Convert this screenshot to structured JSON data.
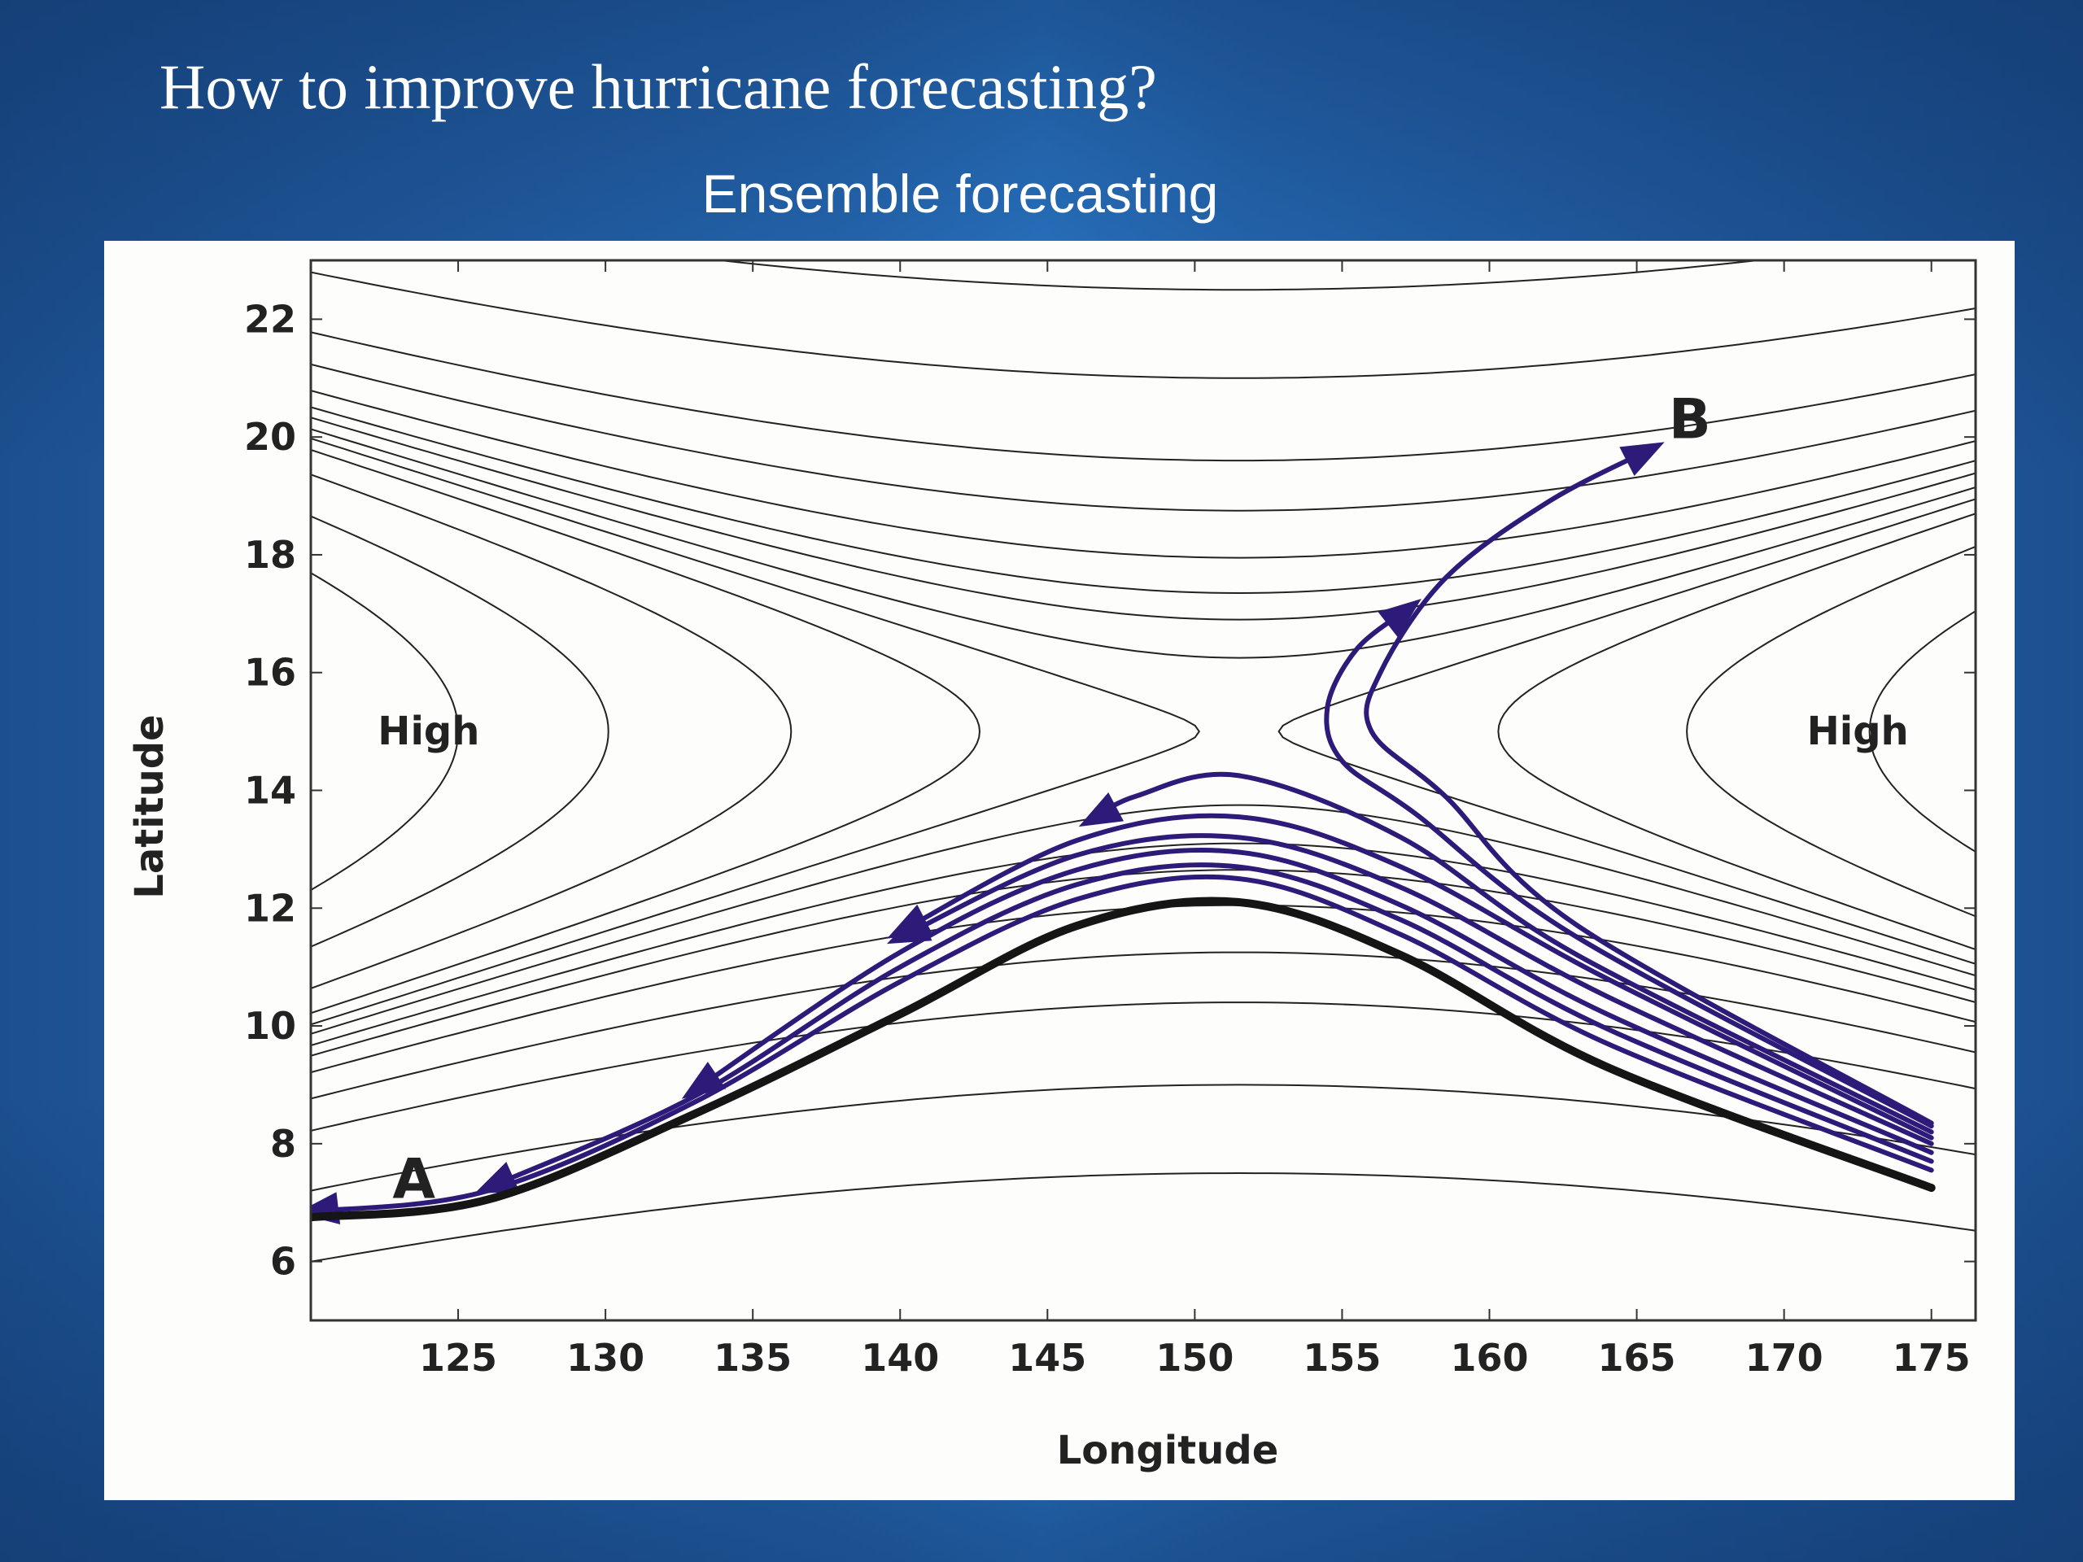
{
  "slide": {
    "title": "How to improve hurricane forecasting?",
    "subtitle": "Ensemble forecasting"
  },
  "colors": {
    "background": "#2a72c0",
    "panel": "#fdfdfb",
    "track_ensemble": "#2e1a78",
    "track_main": "#151515",
    "contour": "#222222"
  },
  "chart_data": {
    "type": "line",
    "title": "",
    "xlabel": "Longitude",
    "ylabel": "Latitude",
    "xlim": [
      120,
      176.5
    ],
    "ylim": [
      5,
      23
    ],
    "xticks": [
      125,
      130,
      135,
      140,
      145,
      150,
      155,
      160,
      165,
      170,
      175
    ],
    "yticks": [
      6,
      8,
      10,
      12,
      14,
      16,
      18,
      20,
      22
    ],
    "grid": false,
    "labels": [
      {
        "text": "High",
        "x": 124,
        "y": 15
      },
      {
        "text": "High",
        "x": 172.5,
        "y": 15
      },
      {
        "text": "A",
        "x": 123.5,
        "y": 7.3
      },
      {
        "text": "B",
        "x": 166.8,
        "y": 20.2
      }
    ],
    "contour_centers": [
      {
        "x": 151.5,
        "y": 15
      },
      {
        "x": 151.5,
        "y": 15
      }
    ],
    "series": [
      {
        "role": "main-track",
        "points": [
          [
            175,
            7.25
          ],
          [
            164,
            9.3
          ],
          [
            157,
            11.2
          ],
          [
            151.5,
            12.1
          ],
          [
            146,
            11.7
          ],
          [
            140,
            10.2
          ],
          [
            133,
            8.5
          ],
          [
            126,
            7.05
          ],
          [
            120,
            6.75
          ]
        ]
      },
      {
        "role": "ensemble",
        "points": [
          [
            175,
            7.55
          ],
          [
            164,
            9.7
          ],
          [
            157,
            11.55
          ],
          [
            151.5,
            12.5
          ],
          [
            146,
            12.15
          ],
          [
            140,
            10.75
          ],
          [
            133,
            8.7
          ],
          [
            126,
            7.2
          ],
          [
            120,
            6.85
          ]
        ]
      },
      {
        "role": "ensemble",
        "points": [
          [
            175,
            7.7
          ],
          [
            164,
            9.95
          ],
          [
            157,
            11.8
          ],
          [
            151.5,
            12.7
          ],
          [
            146,
            12.4
          ],
          [
            140,
            11.0
          ],
          [
            133,
            8.8
          ],
          [
            126,
            7.25
          ]
        ]
      },
      {
        "role": "ensemble",
        "points": [
          [
            175,
            7.85
          ],
          [
            164,
            10.2
          ],
          [
            157,
            12.05
          ],
          [
            151.5,
            12.95
          ],
          [
            146,
            12.65
          ],
          [
            140,
            11.25
          ],
          [
            133,
            8.9
          ]
        ]
      },
      {
        "role": "ensemble",
        "points": [
          [
            175,
            8.0
          ],
          [
            164,
            10.5
          ],
          [
            157,
            12.35
          ],
          [
            151.5,
            13.2
          ],
          [
            146,
            12.9
          ],
          [
            140,
            11.5
          ]
        ]
      },
      {
        "role": "ensemble",
        "points": [
          [
            175,
            8.1
          ],
          [
            164,
            10.8
          ],
          [
            157,
            12.7
          ],
          [
            151.5,
            13.55
          ],
          [
            146,
            13.15
          ],
          [
            140,
            11.6
          ]
        ]
      },
      {
        "role": "ensemble",
        "points": [
          [
            175,
            8.2
          ],
          [
            163,
            11.2
          ],
          [
            157,
            13.2
          ],
          [
            151.5,
            14.25
          ],
          [
            148,
            13.9
          ],
          [
            146.5,
            13.5
          ]
        ]
      },
      {
        "role": "ensemble",
        "points": [
          [
            175,
            8.3
          ],
          [
            163,
            11.5
          ],
          [
            157.5,
            13.6
          ],
          [
            155,
            14.5
          ],
          [
            154.5,
            15.4
          ],
          [
            155.5,
            16.4
          ],
          [
            157.3,
            17.1
          ]
        ]
      },
      {
        "role": "ensemble",
        "points": [
          [
            175,
            8.35
          ],
          [
            163,
            11.7
          ],
          [
            158.5,
            13.9
          ],
          [
            156,
            15.0
          ],
          [
            156.3,
            16.0
          ],
          [
            158.5,
            17.6
          ],
          [
            162,
            18.9
          ],
          [
            165.5,
            19.8
          ]
        ]
      }
    ]
  }
}
